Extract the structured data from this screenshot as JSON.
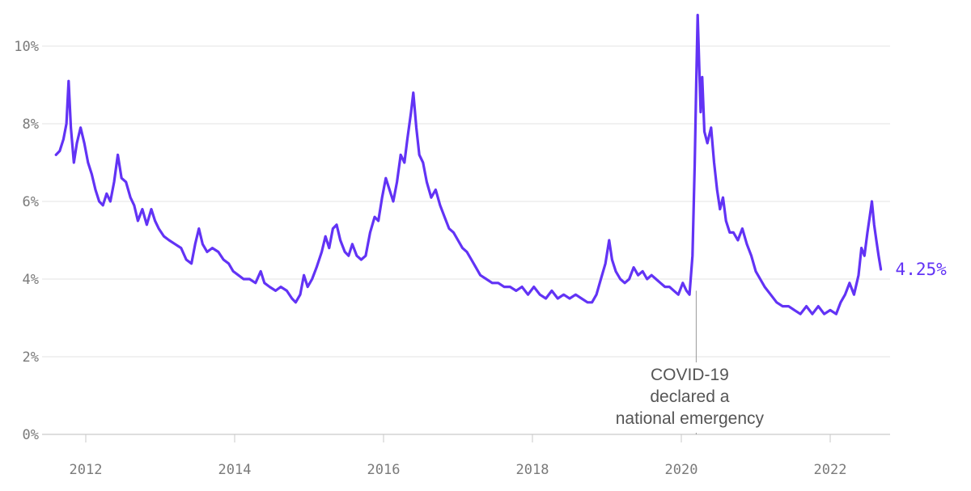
{
  "chart_data": {
    "type": "line",
    "title": "",
    "xlabel": "",
    "ylabel": "",
    "xlim": [
      2011.6,
      2022.85
    ],
    "ylim": [
      0,
      10
    ],
    "y_ticks": [
      {
        "value": 0,
        "label": "0%"
      },
      {
        "value": 2,
        "label": "2%"
      },
      {
        "value": 4,
        "label": "4%"
      },
      {
        "value": 6,
        "label": "6%"
      },
      {
        "value": 8,
        "label": "8%"
      },
      {
        "value": 10,
        "label": "10%"
      }
    ],
    "x_ticks": [
      {
        "value": 2012,
        "label": "2012"
      },
      {
        "value": 2014,
        "label": "2014"
      },
      {
        "value": 2016,
        "label": "2016"
      },
      {
        "value": 2018,
        "label": "2018"
      },
      {
        "value": 2020,
        "label": "2020"
      },
      {
        "value": 2022,
        "label": "2022"
      }
    ],
    "grid": true,
    "series": [
      {
        "color": "#6233f5",
        "end_label": "4.25%",
        "points": [
          [
            2011.6,
            7.2
          ],
          [
            2011.65,
            7.3
          ],
          [
            2011.7,
            7.6
          ],
          [
            2011.74,
            8.0
          ],
          [
            2011.77,
            9.1
          ],
          [
            2011.8,
            7.9
          ],
          [
            2011.84,
            7.0
          ],
          [
            2011.88,
            7.5
          ],
          [
            2011.93,
            7.9
          ],
          [
            2011.98,
            7.5
          ],
          [
            2012.03,
            7.0
          ],
          [
            2012.08,
            6.7
          ],
          [
            2012.13,
            6.3
          ],
          [
            2012.18,
            6.0
          ],
          [
            2012.23,
            5.9
          ],
          [
            2012.28,
            6.2
          ],
          [
            2012.33,
            6.0
          ],
          [
            2012.38,
            6.5
          ],
          [
            2012.43,
            7.2
          ],
          [
            2012.48,
            6.6
          ],
          [
            2012.54,
            6.5
          ],
          [
            2012.6,
            6.1
          ],
          [
            2012.65,
            5.9
          ],
          [
            2012.7,
            5.5
          ],
          [
            2012.76,
            5.8
          ],
          [
            2012.82,
            5.4
          ],
          [
            2012.88,
            5.8
          ],
          [
            2012.93,
            5.5
          ],
          [
            2012.98,
            5.3
          ],
          [
            2013.05,
            5.1
          ],
          [
            2013.12,
            5.0
          ],
          [
            2013.2,
            4.9
          ],
          [
            2013.28,
            4.8
          ],
          [
            2013.35,
            4.5
          ],
          [
            2013.42,
            4.4
          ],
          [
            2013.47,
            4.9
          ],
          [
            2013.52,
            5.3
          ],
          [
            2013.57,
            4.9
          ],
          [
            2013.63,
            4.7
          ],
          [
            2013.7,
            4.8
          ],
          [
            2013.78,
            4.7
          ],
          [
            2013.85,
            4.5
          ],
          [
            2013.92,
            4.4
          ],
          [
            2013.98,
            4.2
          ],
          [
            2014.05,
            4.1
          ],
          [
            2014.12,
            4.0
          ],
          [
            2014.2,
            4.0
          ],
          [
            2014.28,
            3.9
          ],
          [
            2014.35,
            4.2
          ],
          [
            2014.4,
            3.9
          ],
          [
            2014.47,
            3.8
          ],
          [
            2014.55,
            3.7
          ],
          [
            2014.62,
            3.8
          ],
          [
            2014.7,
            3.7
          ],
          [
            2014.77,
            3.5
          ],
          [
            2014.82,
            3.4
          ],
          [
            2014.88,
            3.6
          ],
          [
            2014.93,
            4.1
          ],
          [
            2014.98,
            3.8
          ],
          [
            2015.04,
            4.0
          ],
          [
            2015.1,
            4.3
          ],
          [
            2015.17,
            4.7
          ],
          [
            2015.22,
            5.1
          ],
          [
            2015.27,
            4.8
          ],
          [
            2015.32,
            5.3
          ],
          [
            2015.37,
            5.4
          ],
          [
            2015.42,
            5.0
          ],
          [
            2015.48,
            4.7
          ],
          [
            2015.53,
            4.6
          ],
          [
            2015.58,
            4.9
          ],
          [
            2015.64,
            4.6
          ],
          [
            2015.7,
            4.5
          ],
          [
            2015.76,
            4.6
          ],
          [
            2015.82,
            5.2
          ],
          [
            2015.88,
            5.6
          ],
          [
            2015.93,
            5.5
          ],
          [
            2015.98,
            6.1
          ],
          [
            2016.03,
            6.6
          ],
          [
            2016.08,
            6.3
          ],
          [
            2016.13,
            6.0
          ],
          [
            2016.18,
            6.5
          ],
          [
            2016.23,
            7.2
          ],
          [
            2016.28,
            7.0
          ],
          [
            2016.32,
            7.6
          ],
          [
            2016.37,
            8.3
          ],
          [
            2016.4,
            8.8
          ],
          [
            2016.44,
            7.9
          ],
          [
            2016.48,
            7.2
          ],
          [
            2016.53,
            7.0
          ],
          [
            2016.58,
            6.5
          ],
          [
            2016.64,
            6.1
          ],
          [
            2016.7,
            6.3
          ],
          [
            2016.76,
            5.9
          ],
          [
            2016.82,
            5.6
          ],
          [
            2016.88,
            5.3
          ],
          [
            2016.94,
            5.2
          ],
          [
            2017.0,
            5.0
          ],
          [
            2017.06,
            4.8
          ],
          [
            2017.12,
            4.7
          ],
          [
            2017.18,
            4.5
          ],
          [
            2017.24,
            4.3
          ],
          [
            2017.3,
            4.1
          ],
          [
            2017.38,
            4.0
          ],
          [
            2017.46,
            3.9
          ],
          [
            2017.54,
            3.9
          ],
          [
            2017.62,
            3.8
          ],
          [
            2017.7,
            3.8
          ],
          [
            2017.78,
            3.7
          ],
          [
            2017.86,
            3.8
          ],
          [
            2017.94,
            3.6
          ],
          [
            2018.02,
            3.8
          ],
          [
            2018.1,
            3.6
          ],
          [
            2018.18,
            3.5
          ],
          [
            2018.26,
            3.7
          ],
          [
            2018.34,
            3.5
          ],
          [
            2018.42,
            3.6
          ],
          [
            2018.5,
            3.5
          ],
          [
            2018.58,
            3.6
          ],
          [
            2018.66,
            3.5
          ],
          [
            2018.74,
            3.4
          ],
          [
            2018.8,
            3.4
          ],
          [
            2018.86,
            3.6
          ],
          [
            2018.92,
            4.0
          ],
          [
            2018.98,
            4.4
          ],
          [
            2019.03,
            5.0
          ],
          [
            2019.07,
            4.5
          ],
          [
            2019.12,
            4.2
          ],
          [
            2019.18,
            4.0
          ],
          [
            2019.24,
            3.9
          ],
          [
            2019.3,
            4.0
          ],
          [
            2019.36,
            4.3
          ],
          [
            2019.42,
            4.1
          ],
          [
            2019.48,
            4.2
          ],
          [
            2019.54,
            4.0
          ],
          [
            2019.6,
            4.1
          ],
          [
            2019.66,
            4.0
          ],
          [
            2019.72,
            3.9
          ],
          [
            2019.78,
            3.8
          ],
          [
            2019.84,
            3.8
          ],
          [
            2019.9,
            3.7
          ],
          [
            2019.96,
            3.6
          ],
          [
            2020.02,
            3.9
          ],
          [
            2020.07,
            3.7
          ],
          [
            2020.11,
            3.6
          ],
          [
            2020.15,
            4.6
          ],
          [
            2020.18,
            7.0
          ],
          [
            2020.2,
            9.0
          ],
          [
            2020.22,
            10.8
          ],
          [
            2020.24,
            9.5
          ],
          [
            2020.26,
            8.3
          ],
          [
            2020.28,
            9.2
          ],
          [
            2020.31,
            7.8
          ],
          [
            2020.35,
            7.5
          ],
          [
            2020.4,
            7.9
          ],
          [
            2020.44,
            7.0
          ],
          [
            2020.48,
            6.3
          ],
          [
            2020.52,
            5.8
          ],
          [
            2020.56,
            6.1
          ],
          [
            2020.6,
            5.5
          ],
          [
            2020.65,
            5.2
          ],
          [
            2020.7,
            5.2
          ],
          [
            2020.76,
            5.0
          ],
          [
            2020.82,
            5.3
          ],
          [
            2020.88,
            4.9
          ],
          [
            2020.94,
            4.6
          ],
          [
            2021.0,
            4.2
          ],
          [
            2021.06,
            4.0
          ],
          [
            2021.12,
            3.8
          ],
          [
            2021.2,
            3.6
          ],
          [
            2021.28,
            3.4
          ],
          [
            2021.36,
            3.3
          ],
          [
            2021.44,
            3.3
          ],
          [
            2021.52,
            3.2
          ],
          [
            2021.6,
            3.1
          ],
          [
            2021.68,
            3.3
          ],
          [
            2021.76,
            3.1
          ],
          [
            2021.84,
            3.3
          ],
          [
            2021.92,
            3.1
          ],
          [
            2022.0,
            3.2
          ],
          [
            2022.08,
            3.1
          ],
          [
            2022.14,
            3.4
          ],
          [
            2022.2,
            3.6
          ],
          [
            2022.26,
            3.9
          ],
          [
            2022.32,
            3.6
          ],
          [
            2022.38,
            4.1
          ],
          [
            2022.42,
            4.8
          ],
          [
            2022.46,
            4.6
          ],
          [
            2022.5,
            5.2
          ],
          [
            2022.53,
            5.6
          ],
          [
            2022.56,
            6.0
          ],
          [
            2022.59,
            5.4
          ],
          [
            2022.62,
            5.0
          ],
          [
            2022.65,
            4.6
          ],
          [
            2022.68,
            4.25
          ]
        ]
      }
    ],
    "annotations": [
      {
        "x": 2020.2,
        "lines": [
          "COVID-19",
          "declared a",
          "national emergency"
        ]
      }
    ]
  }
}
